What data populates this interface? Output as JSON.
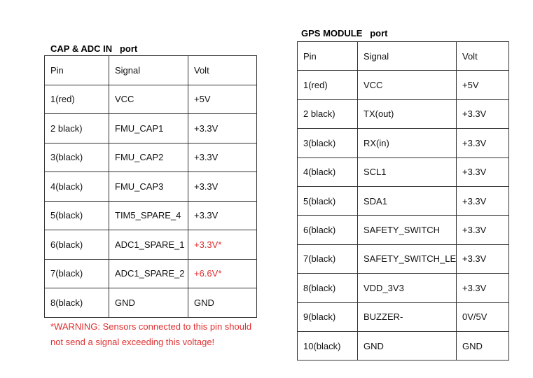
{
  "cap_adc": {
    "title": "CAP & ADC IN   port",
    "headers": [
      "Pin",
      "Signal",
      "Volt"
    ],
    "rows": [
      {
        "pin": "1(red)",
        "signal": "VCC",
        "volt": "+5V"
      },
      {
        "pin": "2 black)",
        "signal": "FMU_CAP1",
        "volt": "+3.3V"
      },
      {
        "pin": "3(black)",
        "signal": "FMU_CAP2",
        "volt": "+3.3V"
      },
      {
        "pin": "4(black)",
        "signal": "FMU_CAP3",
        "volt": "+3.3V"
      },
      {
        "pin": "5(black)",
        "signal": "TIM5_SPARE_4",
        "volt": "+3.3V"
      },
      {
        "pin": "6(black)",
        "signal": "ADC1_SPARE_1",
        "volt": "+3.3V*"
      },
      {
        "pin": "7(black)",
        "signal": "ADC1_SPARE_2",
        "volt": "+6.6V*"
      },
      {
        "pin": "8(black)",
        "signal": "GND",
        "volt": "GND"
      }
    ],
    "warning": "*WARNING: Sensors connected to this pin should not send a signal exceeding this voltage!",
    "warning_color": "#e03030"
  },
  "gps": {
    "title": "GPS MODULE   port",
    "headers": [
      "Pin",
      "Signal",
      "Volt"
    ],
    "rows": [
      {
        "pin": "1(red)",
        "signal": "VCC",
        "volt": "+5V"
      },
      {
        "pin": "2 black)",
        "signal": "TX(out)",
        "volt": "+3.3V"
      },
      {
        "pin": "3(black)",
        "signal": "RX(in)",
        "volt": "+3.3V"
      },
      {
        "pin": "4(black)",
        "signal": "SCL1",
        "volt": "+3.3V"
      },
      {
        "pin": "5(black)",
        "signal": "SDA1",
        "volt": "+3.3V"
      },
      {
        "pin": "6(black)",
        "signal": "SAFETY_SWITCH",
        "volt": "+3.3V"
      },
      {
        "pin": "7(black)",
        "signal": "SAFETY_SWITCH_LED",
        "volt": "+3.3V"
      },
      {
        "pin": "8(black)",
        "signal": "VDD_3V3",
        "volt": "+3.3V"
      },
      {
        "pin": "9(black)",
        "signal": "BUZZER-",
        "volt": "0V/5V"
      },
      {
        "pin": "10(black)",
        "signal": "GND",
        "volt": "GND"
      }
    ]
  }
}
